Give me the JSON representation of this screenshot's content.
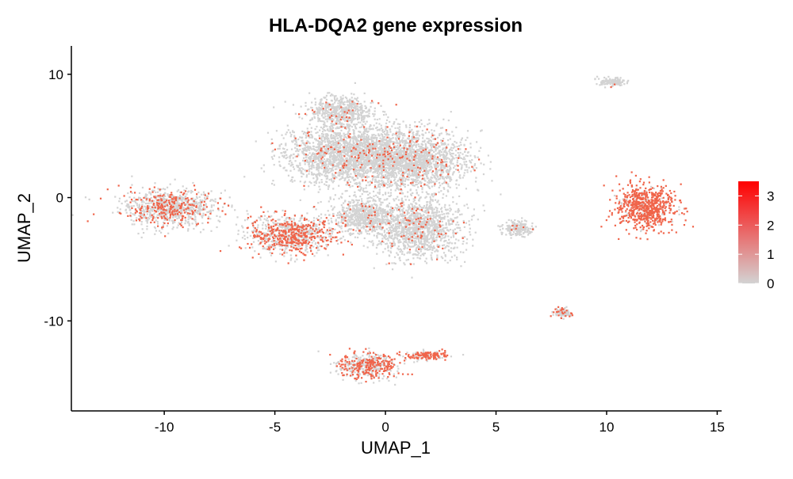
{
  "chart_data": {
    "type": "scatter",
    "title": "HLA-DQA2 gene expression",
    "xlabel": "UMAP_1",
    "ylabel": "UMAP_2",
    "xlim": [
      -14.2,
      15.2
    ],
    "ylim": [
      -17.3,
      12.3
    ],
    "x_ticks": [
      -10,
      -5,
      0,
      5,
      10,
      15
    ],
    "x_tick_labels": [
      "-10",
      "-5",
      "0",
      "5",
      "10",
      "15"
    ],
    "y_ticks": [
      10,
      0,
      -10
    ],
    "y_tick_labels": [
      "10",
      "0",
      "-10"
    ],
    "grid": false,
    "legend_position": "right",
    "colorscale": {
      "low_color": "#d3d3d3",
      "high_color": "#ff0000",
      "min": 0,
      "max": 3.5,
      "ticks": [
        0,
        1,
        2,
        3
      ],
      "tick_labels": [
        "0",
        "1",
        "2",
        "3"
      ]
    },
    "point_color_background": "#d3d3d3",
    "point_color_expressing": "#f0644a",
    "clusters": [
      {
        "center_x": -9.8,
        "center_y": -0.8,
        "spread_x": 1.8,
        "spread_y": 1.2,
        "mean_expression": 0.25
      },
      {
        "center_x": -4.2,
        "center_y": -3.0,
        "spread_x": 1.6,
        "spread_y": 1.3,
        "mean_expression": 0.4
      },
      {
        "center_x": -1.8,
        "center_y": 3.5,
        "spread_x": 2.3,
        "spread_y": 2.0,
        "mean_expression": 0.05
      },
      {
        "center_x": 1.2,
        "center_y": 3.0,
        "spread_x": 2.1,
        "spread_y": 2.0,
        "mean_expression": 0.05
      },
      {
        "center_x": -2.0,
        "center_y": 7.0,
        "spread_x": 1.2,
        "spread_y": 1.0,
        "mean_expression": 0.03
      },
      {
        "center_x": 1.5,
        "center_y": -2.5,
        "spread_x": 1.5,
        "spread_y": 2.0,
        "mean_expression": 0.05
      },
      {
        "center_x": -1.0,
        "center_y": -1.5,
        "spread_x": 1.2,
        "spread_y": 1.2,
        "mean_expression": 0.04
      },
      {
        "center_x": 11.8,
        "center_y": -0.8,
        "spread_x": 1.1,
        "spread_y": 1.5,
        "mean_expression": 0.85
      },
      {
        "center_x": 10.2,
        "center_y": 9.4,
        "spread_x": 0.5,
        "spread_y": 0.3,
        "mean_expression": 0.02
      },
      {
        "center_x": 6.0,
        "center_y": -2.5,
        "spread_x": 0.6,
        "spread_y": 0.5,
        "mean_expression": 0.03
      },
      {
        "center_x": 8.0,
        "center_y": -9.3,
        "spread_x": 0.4,
        "spread_y": 0.3,
        "mean_expression": 0.2
      },
      {
        "center_x": -0.8,
        "center_y": -13.6,
        "spread_x": 1.1,
        "spread_y": 0.9,
        "mean_expression": 0.45
      },
      {
        "center_x": 1.8,
        "center_y": -12.8,
        "spread_x": 0.8,
        "spread_y": 0.3,
        "mean_expression": 0.6
      }
    ]
  }
}
